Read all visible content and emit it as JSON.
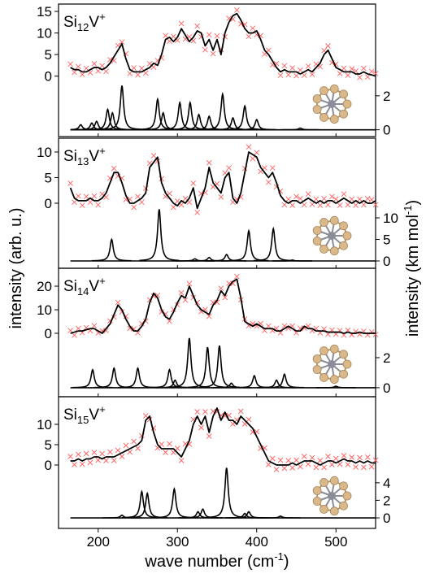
{
  "axes": {
    "x_label": [
      "wave number (cm",
      "-1",
      ")"
    ],
    "y_label": "intensity (arb. u.)",
    "y2_label": [
      "intensity (km mol",
      "-1",
      ")"
    ]
  },
  "chart_data": [
    {
      "type": "line",
      "label": {
        "element": "Si",
        "count": "12",
        "dopant": "V",
        "charge": "+"
      },
      "xlim": [
        150,
        550
      ],
      "xticks": [
        200,
        300,
        400,
        500
      ],
      "ylim": [
        -14,
        16.7
      ],
      "yticks": [
        0,
        5,
        10,
        15
      ],
      "y2lim": [
        -0.4,
        7.4
      ],
      "y2ticks": [
        0,
        2
      ],
      "x": [
        165,
        170,
        175,
        180,
        185,
        190,
        195,
        200,
        205,
        210,
        215,
        220,
        225,
        230,
        235,
        240,
        245,
        250,
        255,
        260,
        265,
        270,
        275,
        280,
        285,
        290,
        295,
        300,
        305,
        310,
        315,
        320,
        325,
        330,
        335,
        340,
        345,
        350,
        355,
        360,
        365,
        370,
        375,
        380,
        385,
        390,
        395,
        400,
        405,
        410,
        415,
        420,
        425,
        430,
        435,
        440,
        445,
        450,
        455,
        460,
        465,
        470,
        475,
        480,
        485,
        490,
        495,
        500,
        505,
        510,
        515,
        520,
        525,
        530,
        535,
        540,
        545,
        550
      ],
      "series": [
        {
          "color": "#000000",
          "values": [
            2,
            1.5,
            1.5,
            1,
            1,
            1.5,
            2,
            2,
            1.5,
            2,
            3,
            4.5,
            6,
            7.5,
            4,
            1.5,
            1,
            1,
            1,
            1.5,
            2,
            3,
            2.5,
            5,
            8.5,
            9,
            8,
            9,
            11,
            9.5,
            8,
            9,
            10.5,
            10,
            7,
            8.5,
            6,
            8.5,
            5,
            10,
            12.5,
            14,
            14.5,
            13,
            11,
            10,
            10,
            10.5,
            8.5,
            6,
            5,
            3.5,
            2,
            1,
            1.5,
            1,
            1,
            1,
            0.5,
            1,
            1.5,
            1,
            2,
            3,
            5,
            6,
            4,
            2,
            1.5,
            1,
            1,
            1,
            0.5,
            0.5,
            1,
            0.5,
            0.3,
            0
          ]
        },
        {
          "color": "#ff6060",
          "marker": "x",
          "values": [
            2.8,
            0.9,
            2.2,
            0.4,
            1.8,
            0.8,
            2.9,
            1.2,
            2.4,
            1.1,
            3.8,
            3.6,
            7.1,
            7.9,
            5.2,
            0.6,
            1.9,
            0.3,
            1.8,
            0.7,
            2.9,
            2.1,
            3.6,
            4.2,
            9.4,
            8.1,
            9.2,
            8.3,
            12.2,
            8.6,
            9.1,
            8.2,
            11.6,
            9.1,
            6.1,
            9.6,
            5.2,
            9.3,
            6.2,
            9.1,
            13.4,
            13.2,
            15.3,
            12.1,
            12.0,
            9.2,
            11.1,
            9.6,
            9.4,
            5.1,
            6.0,
            2.6,
            2.9,
            0.2,
            2.4,
            0.3,
            1.9,
            0.1,
            1.4,
            0.2,
            2.3,
            0.4,
            2.8,
            2.2,
            5.9,
            7.0,
            3.1,
            2.8,
            0.6,
            1.8,
            0.2,
            1.7,
            1.2,
            -0.3,
            1.8,
            -0.2,
            1.1,
            0.6
          ]
        },
        {
          "color": "#000000",
          "axis": "y2",
          "peaks": true,
          "x": [
            178,
            192,
            198,
            212,
            218,
            230,
            275,
            282,
            303,
            316,
            327,
            340,
            357,
            370,
            385,
            400,
            455
          ],
          "values": [
            0.3,
            0.4,
            0.5,
            1.2,
            1.0,
            2.6,
            1.8,
            1.0,
            1.6,
            1.6,
            0.9,
            0.8,
            2.1,
            0.7,
            1.4,
            0.6,
            0.1
          ]
        }
      ]
    },
    {
      "type": "line",
      "label": {
        "element": "Si",
        "count": "13",
        "dopant": "V",
        "charge": "+"
      },
      "xlim": [
        150,
        550
      ],
      "xticks": [
        200,
        300,
        400,
        500
      ],
      "ylim": [
        -12.7,
        12.7
      ],
      "yticks": [
        0,
        5,
        10
      ],
      "y2lim": [
        -1.7,
        28.5
      ],
      "y2ticks": [
        0,
        5,
        10
      ],
      "x": [
        165,
        170,
        175,
        180,
        185,
        190,
        195,
        200,
        205,
        210,
        215,
        220,
        225,
        230,
        235,
        240,
        245,
        250,
        255,
        260,
        265,
        270,
        275,
        280,
        285,
        290,
        295,
        300,
        305,
        310,
        315,
        320,
        325,
        330,
        335,
        340,
        345,
        350,
        355,
        360,
        365,
        370,
        375,
        380,
        385,
        390,
        395,
        400,
        405,
        410,
        415,
        420,
        425,
        430,
        435,
        440,
        445,
        450,
        455,
        460,
        465,
        470,
        475,
        480,
        485,
        490,
        495,
        500,
        505,
        510,
        515,
        520,
        525,
        530,
        535,
        540,
        545,
        550
      ],
      "series": [
        {
          "color": "#000000",
          "values": [
            3,
            1,
            0.5,
            0.5,
            0.5,
            1,
            0.5,
            0.5,
            1,
            2,
            4,
            6,
            6,
            4,
            1.5,
            0,
            0,
            0.5,
            1,
            2,
            7,
            8,
            9,
            4,
            2,
            1,
            0,
            -0.5,
            0.5,
            0,
            1,
            3,
            -1,
            1,
            3,
            7,
            4,
            3,
            2,
            5,
            6,
            1,
            0,
            2,
            6,
            10,
            9.5,
            9,
            7,
            6,
            5,
            6,
            4,
            1.5,
            0.5,
            0,
            0.5,
            0.5,
            0,
            0.5,
            1,
            0.5,
            0,
            0.5,
            0,
            0.5,
            0.5,
            0,
            0.5,
            1,
            0.5,
            0,
            0.5,
            0,
            0.5,
            0,
            0,
            0.5
          ]
        },
        {
          "color": "#ff6060",
          "marker": "x",
          "values": [
            3.9,
            0.2,
            1.4,
            -0.4,
            1.3,
            0.2,
            1.4,
            -0.3,
            1.8,
            1.2,
            4.9,
            6.8,
            5.3,
            4.9,
            0.7,
            0.8,
            -0.8,
            1.3,
            0.2,
            2.9,
            7.8,
            9.3,
            8.2,
            4.8,
            1.3,
            1.9,
            -0.8,
            0.4,
            -0.3,
            0.9,
            0.2,
            3.9,
            -1.8,
            1.9,
            2.1,
            7.9,
            3.2,
            3.8,
            1.2,
            5.9,
            6.9,
            0.2,
            0.8,
            1.2,
            6.8,
            11.0,
            8.7,
            9.9,
            6.2,
            6.9,
            4.1,
            6.9,
            3.2,
            2.4,
            -0.3,
            0.8,
            -0.4,
            1.3,
            0.9,
            -0.3,
            1.8,
            -0.2,
            0.8,
            -0.4,
            0.9,
            -0.3,
            1.3,
            0.8,
            -0.4,
            1.8,
            -0.3,
            0.8,
            -0.4,
            0.8,
            -0.3,
            0.9,
            0.7,
            -0.3
          ]
        },
        {
          "color": "#000000",
          "axis": "y2",
          "peaks": true,
          "x": [
            217,
            277,
            322,
            340,
            362,
            390,
            421,
            445
          ],
          "values": [
            5,
            12,
            0.5,
            0.8,
            1.5,
            7,
            7.5,
            0.2
          ]
        }
      ]
    },
    {
      "type": "line",
      "label": {
        "element": "Si",
        "count": "14",
        "dopant": "V",
        "charge": "+"
      },
      "xlim": [
        150,
        550
      ],
      "xticks": [
        200,
        300,
        400,
        500
      ],
      "ylim": [
        -26.9,
        27.6
      ],
      "yticks": [
        0,
        10,
        20
      ],
      "y2lim": [
        -0.6,
        7.95
      ],
      "y2ticks": [
        0,
        2
      ],
      "x": [
        165,
        170,
        175,
        180,
        185,
        190,
        195,
        200,
        205,
        210,
        215,
        220,
        225,
        230,
        235,
        240,
        245,
        250,
        255,
        260,
        265,
        270,
        275,
        280,
        285,
        290,
        295,
        300,
        305,
        310,
        315,
        320,
        325,
        330,
        335,
        340,
        345,
        350,
        355,
        360,
        365,
        370,
        375,
        380,
        385,
        390,
        395,
        400,
        405,
        410,
        415,
        420,
        425,
        430,
        435,
        440,
        445,
        450,
        455,
        460,
        465,
        470,
        475,
        480,
        485,
        490,
        495,
        500,
        505,
        510,
        515,
        520,
        525,
        530,
        535,
        540,
        545,
        550
      ],
      "series": [
        {
          "color": "#000000",
          "values": [
            0,
            0.5,
            1,
            1,
            1.5,
            2,
            2,
            1,
            0,
            2,
            4,
            8,
            12,
            10,
            6,
            3,
            1,
            1,
            3,
            6,
            13,
            17,
            15,
            10,
            7,
            6,
            9,
            13,
            16,
            15,
            20,
            16,
            12,
            10,
            9,
            8,
            12,
            14,
            18,
            16,
            20,
            22,
            23,
            15,
            5,
            4,
            3,
            4,
            3,
            2,
            2,
            2,
            1,
            1,
            2,
            3,
            2,
            1,
            1,
            3,
            2,
            2,
            1,
            1,
            1,
            0.5,
            0.5,
            0.5,
            0.5,
            0,
            0.5,
            0,
            0,
            0.5,
            0,
            0,
            0,
            0
          ]
        },
        {
          "color": "#ff6060",
          "marker": "x",
          "values": [
            1.2,
            -0.8,
            2.1,
            0.3,
            2.4,
            1.1,
            3.2,
            0.2,
            1.1,
            1.2,
            5.3,
            6.9,
            13.1,
            9.1,
            7.2,
            2.1,
            1.9,
            0.2,
            4.1,
            5.2,
            14.2,
            15.8,
            16.1,
            9.1,
            8.2,
            5.1,
            10.1,
            12.1,
            17.2,
            14.1,
            21.1,
            15.2,
            13.1,
            9.2,
            10.1,
            7.2,
            13.1,
            13.2,
            19.1,
            15.2,
            21.2,
            21.1,
            24.1,
            14.2,
            6.1,
            3.2,
            4.1,
            3.1,
            4.1,
            1.2,
            3.1,
            1.2,
            2.1,
            0.2,
            3.1,
            2.2,
            3.1,
            0.2,
            2.1,
            2.2,
            3.1,
            1.1,
            2.1,
            0.2,
            1.9,
            -0.4,
            1.4,
            -0.3,
            1.2,
            -0.8,
            1.3,
            -0.6,
            0.8,
            -0.4,
            0.9,
            -0.7,
            0.6,
            -0.5
          ]
        },
        {
          "color": "#000000",
          "axis": "y2",
          "peaks": true,
          "x": [
            193,
            220,
            250,
            290,
            297,
            315,
            338,
            353,
            368,
            397,
            425,
            435,
            500
          ],
          "values": [
            1.2,
            1.3,
            1.3,
            1.2,
            0.5,
            3.3,
            2.7,
            2.8,
            0.3,
            0.8,
            0.5,
            0.9,
            0.1
          ]
        }
      ]
    },
    {
      "type": "line",
      "label": {
        "element": "Si",
        "count": "15",
        "dopant": "V",
        "charge": "+"
      },
      "xlim": [
        150,
        550
      ],
      "xticks": [
        200,
        300,
        400,
        500
      ],
      "ylim": [
        -15.6,
        16.8
      ],
      "yticks": [
        0,
        5,
        10
      ],
      "y2lim": [
        -1.2,
        13.8
      ],
      "y2ticks": [
        0,
        2,
        4
      ],
      "x": [
        165,
        170,
        175,
        180,
        185,
        190,
        195,
        200,
        205,
        210,
        215,
        220,
        225,
        230,
        235,
        240,
        245,
        250,
        255,
        260,
        265,
        270,
        275,
        280,
        285,
        290,
        295,
        300,
        305,
        310,
        315,
        320,
        325,
        330,
        335,
        340,
        345,
        350,
        355,
        360,
        365,
        370,
        375,
        380,
        385,
        390,
        395,
        400,
        405,
        410,
        415,
        420,
        425,
        430,
        435,
        440,
        445,
        450,
        455,
        460,
        465,
        470,
        475,
        480,
        485,
        490,
        495,
        500,
        505,
        510,
        515,
        520,
        525,
        530,
        535,
        540,
        545,
        550
      ],
      "series": [
        {
          "color": "#000000",
          "values": [
            1,
            1,
            1.5,
            1,
            1.5,
            1.5,
            2,
            2,
            1.5,
            2,
            2,
            2,
            2.5,
            3,
            3.5,
            4,
            4.5,
            5,
            6,
            11,
            12,
            8,
            5,
            4,
            4,
            4,
            4,
            3,
            2,
            4,
            6,
            10,
            12,
            10,
            12,
            8,
            12,
            14,
            11,
            13,
            11,
            11,
            10,
            12,
            11,
            10,
            9,
            7,
            5,
            3,
            1,
            0.5,
            0,
            0,
            0,
            0,
            0.5,
            0,
            0.5,
            1,
            1,
            1,
            0.5,
            0,
            0.5,
            1,
            1,
            0.5,
            1,
            1.5,
            1,
            1,
            0.5,
            1,
            0.5,
            1,
            0.5,
            0.5
          ]
        },
        {
          "color": "#ff6060",
          "marker": "x",
          "values": [
            2.1,
            0.1,
            2.6,
            0.2,
            2.8,
            0.6,
            3.1,
            1.2,
            2.8,
            1.1,
            3.2,
            1.1,
            3.6,
            2.1,
            4.8,
            3.2,
            5.8,
            4.1,
            7.2,
            12.1,
            11.2,
            9.1,
            4.2,
            5.1,
            3.1,
            5.2,
            3.1,
            4.1,
            1.1,
            5.2,
            5.1,
            11.2,
            13.1,
            9.2,
            13.1,
            7.1,
            13.2,
            13.1,
            12.2,
            12.1,
            12.2,
            10.1,
            11.1,
            13.2,
            10.1,
            11.2,
            8.1,
            8.2,
            4.1,
            4.2,
            0.1,
            1.6,
            -1.1,
            1.2,
            -0.8,
            1.1,
            -0.7,
            1.2,
            -0.4,
            2.1,
            0.2,
            1.8,
            -0.6,
            1.1,
            -0.6,
            2.1,
            0.1,
            1.6,
            0.2,
            2.3,
            0.1,
            1.9,
            -0.5,
            1.8,
            -0.6,
            1.9,
            -0.4,
            1.2
          ]
        },
        {
          "color": "#000000",
          "axis": "y2",
          "peaks": true,
          "x": [
            230,
            255,
            262,
            296,
            326,
            332,
            362,
            385,
            390,
            430
          ],
          "values": [
            0.3,
            3,
            2.8,
            3.3,
            0.7,
            1.0,
            5.7,
            0.5,
            0.7,
            0.2
          ]
        }
      ]
    }
  ]
}
